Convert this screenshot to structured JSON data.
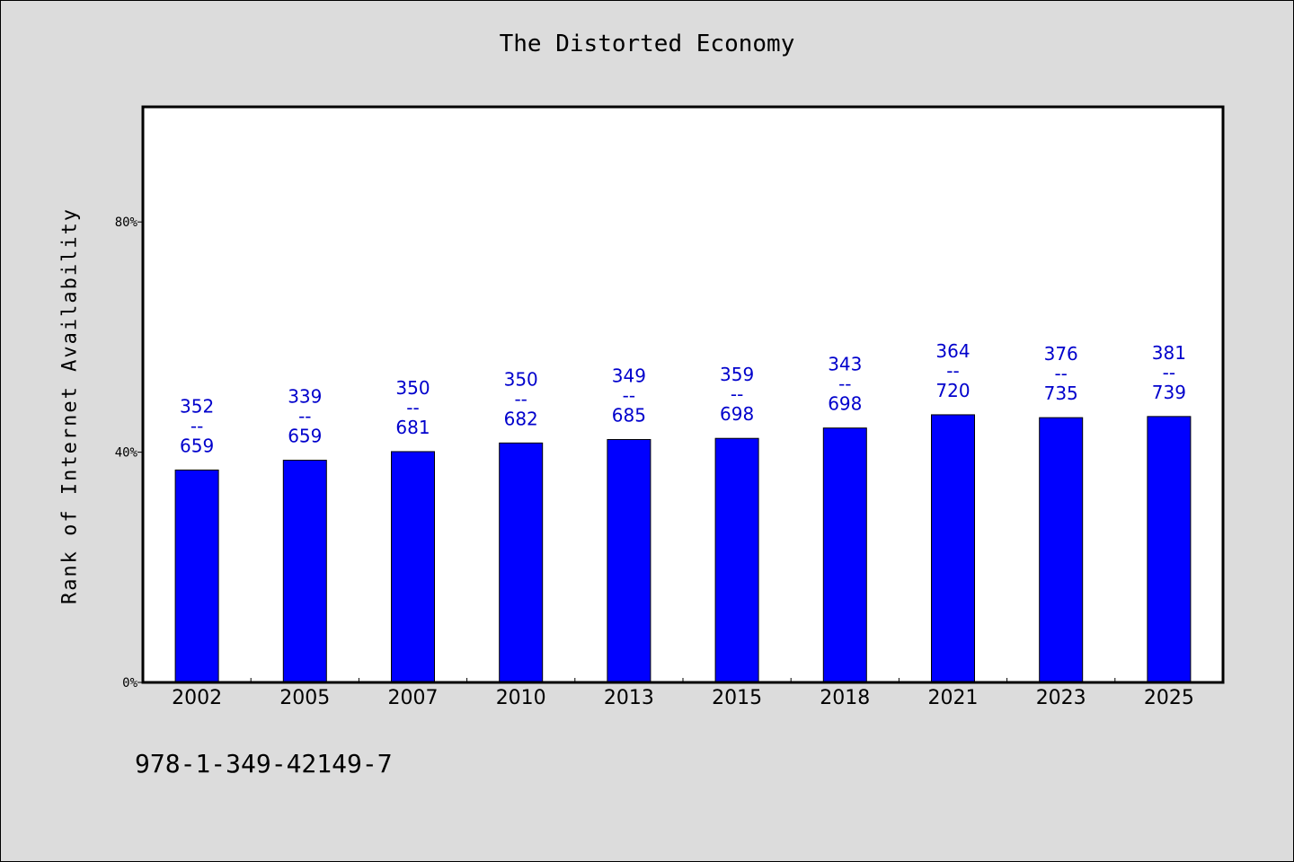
{
  "chart_data": {
    "type": "bar",
    "title": "The Distorted Economy",
    "ylabel": "Rank of Internet Availability",
    "categories": [
      "2002",
      "2005",
      "2007",
      "2010",
      "2013",
      "2015",
      "2018",
      "2021",
      "2023",
      "2025"
    ],
    "values": [
      36.9,
      38.6,
      40.1,
      41.6,
      42.2,
      42.4,
      44.2,
      46.5,
      46.0,
      46.2
    ],
    "bar_labels": [
      {
        "top": "352",
        "mid": "--",
        "bottom": "659"
      },
      {
        "top": "339",
        "mid": "--",
        "bottom": "659"
      },
      {
        "top": "350",
        "mid": "--",
        "bottom": "681"
      },
      {
        "top": "350",
        "mid": "--",
        "bottom": "682"
      },
      {
        "top": "349",
        "mid": "--",
        "bottom": "685"
      },
      {
        "top": "359",
        "mid": "--",
        "bottom": "698"
      },
      {
        "top": "343",
        "mid": "--",
        "bottom": "698"
      },
      {
        "top": "364",
        "mid": "--",
        "bottom": "720"
      },
      {
        "top": "376",
        "mid": "--",
        "bottom": "735"
      },
      {
        "top": "381",
        "mid": "--",
        "bottom": "739"
      }
    ],
    "ylim": [
      0,
      100
    ],
    "yticks": [
      {
        "value": 0,
        "label": "0%"
      },
      {
        "value": 40,
        "label": "40%"
      },
      {
        "value": 80,
        "label": "80%"
      }
    ],
    "grid": false,
    "colors": {
      "bar": "#0000ff",
      "label": "#0000cc"
    }
  },
  "footer": {
    "isbn": "978-1-349-42149-7"
  }
}
